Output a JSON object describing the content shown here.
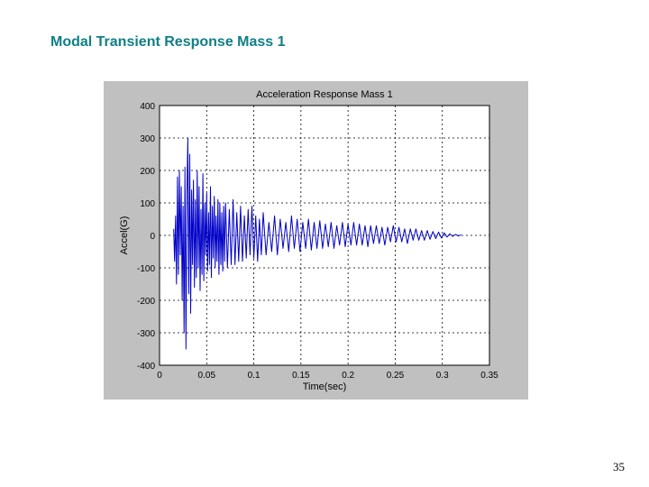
{
  "slide": {
    "title": "Modal Transient Response Mass 1",
    "page_number": "35"
  },
  "colors": {
    "title": "#0f7f86",
    "frame": "#c0c0c0",
    "series": "#0000c8"
  },
  "chart_data": {
    "type": "line",
    "title": "Acceleration Response Mass 1",
    "xlabel": "Time(sec)",
    "ylabel": "Accel(G)",
    "xlim": [
      0,
      0.35
    ],
    "ylim": [
      -400,
      400
    ],
    "x_ticks": [
      0,
      0.05,
      0.1,
      0.15,
      0.2,
      0.25,
      0.3,
      0.35
    ],
    "x_tick_labels": [
      "0",
      "0.05",
      "0.1",
      "0.15",
      "0.2",
      "0.25",
      "0.3",
      "0.35"
    ],
    "y_ticks": [
      400,
      300,
      200,
      100,
      0,
      -100,
      -200,
      -300,
      -400
    ],
    "y_tick_labels": [
      "400",
      "300",
      "200",
      "100",
      "0",
      "-100",
      "-200",
      "-300",
      "-400"
    ],
    "grid": true,
    "series": [
      {
        "name": "",
        "x": [
          0.015,
          0.016,
          0.017,
          0.018,
          0.019,
          0.02,
          0.021,
          0.022,
          0.023,
          0.024,
          0.025,
          0.026,
          0.027,
          0.028,
          0.029,
          0.03,
          0.031,
          0.032,
          0.033,
          0.034,
          0.035,
          0.036,
          0.037,
          0.038,
          0.039,
          0.04,
          0.041,
          0.042,
          0.043,
          0.044,
          0.045,
          0.046,
          0.047,
          0.048,
          0.049,
          0.05,
          0.051,
          0.052,
          0.053,
          0.054,
          0.055,
          0.056,
          0.057,
          0.058,
          0.059,
          0.06,
          0.061,
          0.062,
          0.063,
          0.064,
          0.065,
          0.066,
          0.067,
          0.068,
          0.069,
          0.07,
          0.072,
          0.074,
          0.076,
          0.078,
          0.08,
          0.082,
          0.084,
          0.086,
          0.088,
          0.09,
          0.092,
          0.094,
          0.096,
          0.098,
          0.1,
          0.102,
          0.104,
          0.106,
          0.108,
          0.11,
          0.113,
          0.116,
          0.119,
          0.122,
          0.125,
          0.128,
          0.131,
          0.134,
          0.137,
          0.14,
          0.143,
          0.146,
          0.149,
          0.152,
          0.155,
          0.158,
          0.161,
          0.164,
          0.167,
          0.17,
          0.173,
          0.176,
          0.179,
          0.182,
          0.185,
          0.188,
          0.191,
          0.194,
          0.197,
          0.2,
          0.203,
          0.206,
          0.209,
          0.212,
          0.215,
          0.218,
          0.221,
          0.224,
          0.227,
          0.23,
          0.233,
          0.236,
          0.239,
          0.242,
          0.245,
          0.248,
          0.251,
          0.254,
          0.257,
          0.26,
          0.263,
          0.266,
          0.269,
          0.272,
          0.275,
          0.278,
          0.281,
          0.284,
          0.287,
          0.29,
          0.293,
          0.296,
          0.299,
          0.302,
          0.305,
          0.308,
          0.311,
          0.314,
          0.317,
          0.32
        ],
        "y": [
          20,
          -80,
          60,
          -150,
          180,
          -120,
          200,
          -60,
          150,
          -200,
          90,
          -300,
          210,
          -350,
          120,
          300,
          -180,
          250,
          -240,
          140,
          -90,
          170,
          -160,
          110,
          -130,
          200,
          -100,
          150,
          -170,
          80,
          -120,
          190,
          -140,
          100,
          -60,
          130,
          -110,
          70,
          -90,
          150,
          -130,
          90,
          -70,
          120,
          -100,
          60,
          -80,
          110,
          -120,
          100,
          -90,
          70,
          -110,
          90,
          -80,
          100,
          -100,
          80,
          -90,
          110,
          -90,
          70,
          -80,
          90,
          -80,
          60,
          -70,
          80,
          -60,
          90,
          -70,
          60,
          -80,
          50,
          -60,
          70,
          -60,
          40,
          -50,
          60,
          -60,
          50,
          -40,
          40,
          -50,
          60,
          -40,
          50,
          -50,
          40,
          -40,
          50,
          -45,
          40,
          -40,
          45,
          -40,
          35,
          -35,
          40,
          -40,
          30,
          -30,
          40,
          -35,
          35,
          -30,
          40,
          -30,
          35,
          -30,
          30,
          -35,
          30,
          -25,
          30,
          -25,
          25,
          -30,
          25,
          -20,
          30,
          -20,
          25,
          -20,
          20,
          -25,
          20,
          -15,
          20,
          -15,
          15,
          -15,
          15,
          -12,
          12,
          -10,
          10,
          -8,
          8,
          -5,
          5,
          -3,
          3,
          -2,
          2
        ]
      }
    ]
  }
}
